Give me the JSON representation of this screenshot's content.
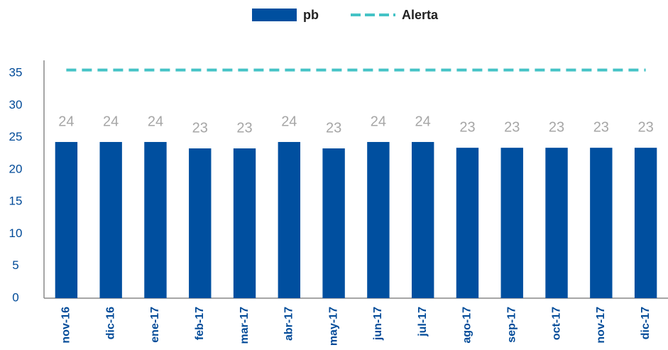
{
  "chart_data": {
    "type": "bar",
    "categories": [
      "nov-16",
      "dic-16",
      "ene-17",
      "feb-17",
      "mar-17",
      "abr-17",
      "may-17",
      "jun-17",
      "jul-17",
      "ago-17",
      "sep-17",
      "oct-17",
      "nov-17",
      "dic-17"
    ],
    "series": [
      {
        "name": "pb",
        "type": "bar",
        "color": "#004f9f",
        "values": [
          24.3,
          24.3,
          24.3,
          23.3,
          23.3,
          24.3,
          23.3,
          24.3,
          24.3,
          23.4,
          23.4,
          23.4,
          23.4,
          23.4
        ],
        "value_labels": [
          "24",
          "24",
          "24",
          "23",
          "23",
          "24",
          "23",
          "24",
          "24",
          "23",
          "23",
          "23",
          "23",
          "23"
        ]
      },
      {
        "name": "Alerta",
        "type": "line",
        "dashed": true,
        "color": "#45c3c6",
        "values": [
          35.5,
          35.5,
          35.5,
          35.5,
          35.5,
          35.5,
          35.5,
          35.5,
          35.5,
          35.5,
          35.5,
          35.5,
          35.5,
          35.5
        ]
      }
    ],
    "ylim": [
      0,
      37
    ],
    "yticks": [
      0,
      5,
      10,
      15,
      20,
      25,
      30,
      35
    ],
    "grid": false,
    "legend": "top"
  }
}
